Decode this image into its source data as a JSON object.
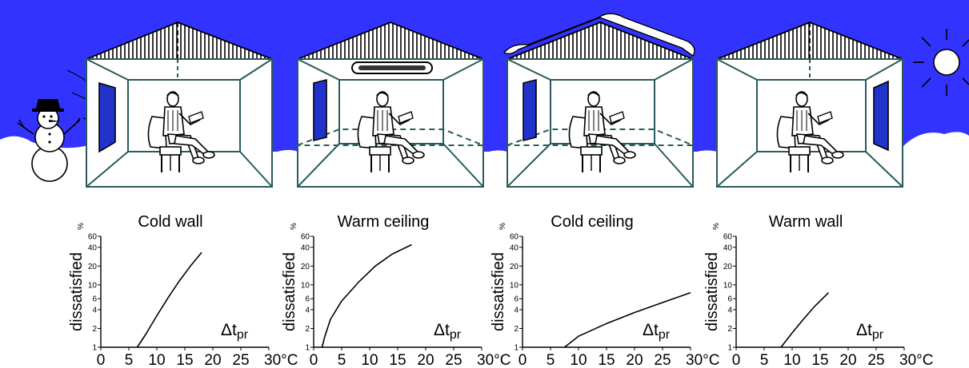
{
  "x_ticks": [
    "0",
    "5",
    "10",
    "15",
    "20",
    "25",
    "30°C"
  ],
  "y_ticks": [
    "1",
    "2",
    "4",
    "6",
    "10",
    "20",
    "40",
    "60"
  ],
  "y_unit": "%",
  "y_label": "dissatisfied",
  "x_label": {
    "main": "Δt",
    "sub": "pr"
  },
  "colors": {
    "sky": "#3333ff",
    "line": "#000000",
    "room_edge": "#2a5a5a",
    "window": "#2233cc"
  },
  "icons": [
    "snowman-icon",
    "sun-icon",
    "seated-person-icon",
    "heating-panel-icon",
    "snow-roof-icon"
  ],
  "chart_data": [
    {
      "type": "line",
      "title": "Cold wall",
      "xlabel": "Δtpr",
      "ylabel": "dissatisfied",
      "y_scale": "log",
      "xlim": [
        0,
        30
      ],
      "ylim": [
        1,
        60
      ],
      "series": [
        {
          "x": [
            6.5,
            8,
            10,
            12,
            14,
            16,
            18
          ],
          "y": [
            1,
            1.6,
            3.2,
            6.2,
            11.5,
            20,
            33
          ]
        }
      ]
    },
    {
      "type": "line",
      "title": "Warm ceiling",
      "xlabel": "Δtpr",
      "ylabel": "dissatisfied",
      "y_scale": "log",
      "xlim": [
        0,
        30
      ],
      "ylim": [
        1,
        60
      ],
      "series": [
        {
          "x": [
            1.5,
            2,
            3,
            5,
            8,
            11,
            14,
            17.5
          ],
          "y": [
            1,
            1.5,
            2.8,
            5.5,
            11,
            20,
            31,
            44
          ]
        }
      ]
    },
    {
      "type": "line",
      "title": "Cold ceiling",
      "xlabel": "Δtpr",
      "ylabel": "dissatisfied",
      "y_scale": "log",
      "xlim": [
        0,
        30
      ],
      "ylim": [
        1,
        60
      ],
      "series": [
        {
          "x": [
            7.5,
            10,
            15,
            20,
            25,
            30
          ],
          "y": [
            1,
            1.5,
            2.4,
            3.6,
            5.2,
            7.5
          ]
        }
      ]
    },
    {
      "type": "line",
      "title": "Warm wall",
      "xlabel": "Δtpr",
      "ylabel": "dissatisfied",
      "y_scale": "log",
      "xlim": [
        0,
        30
      ],
      "ylim": [
        1,
        60
      ],
      "series": [
        {
          "x": [
            8,
            10,
            12,
            14,
            16.5
          ],
          "y": [
            1,
            1.7,
            2.8,
            4.5,
            7.5
          ]
        }
      ]
    }
  ]
}
